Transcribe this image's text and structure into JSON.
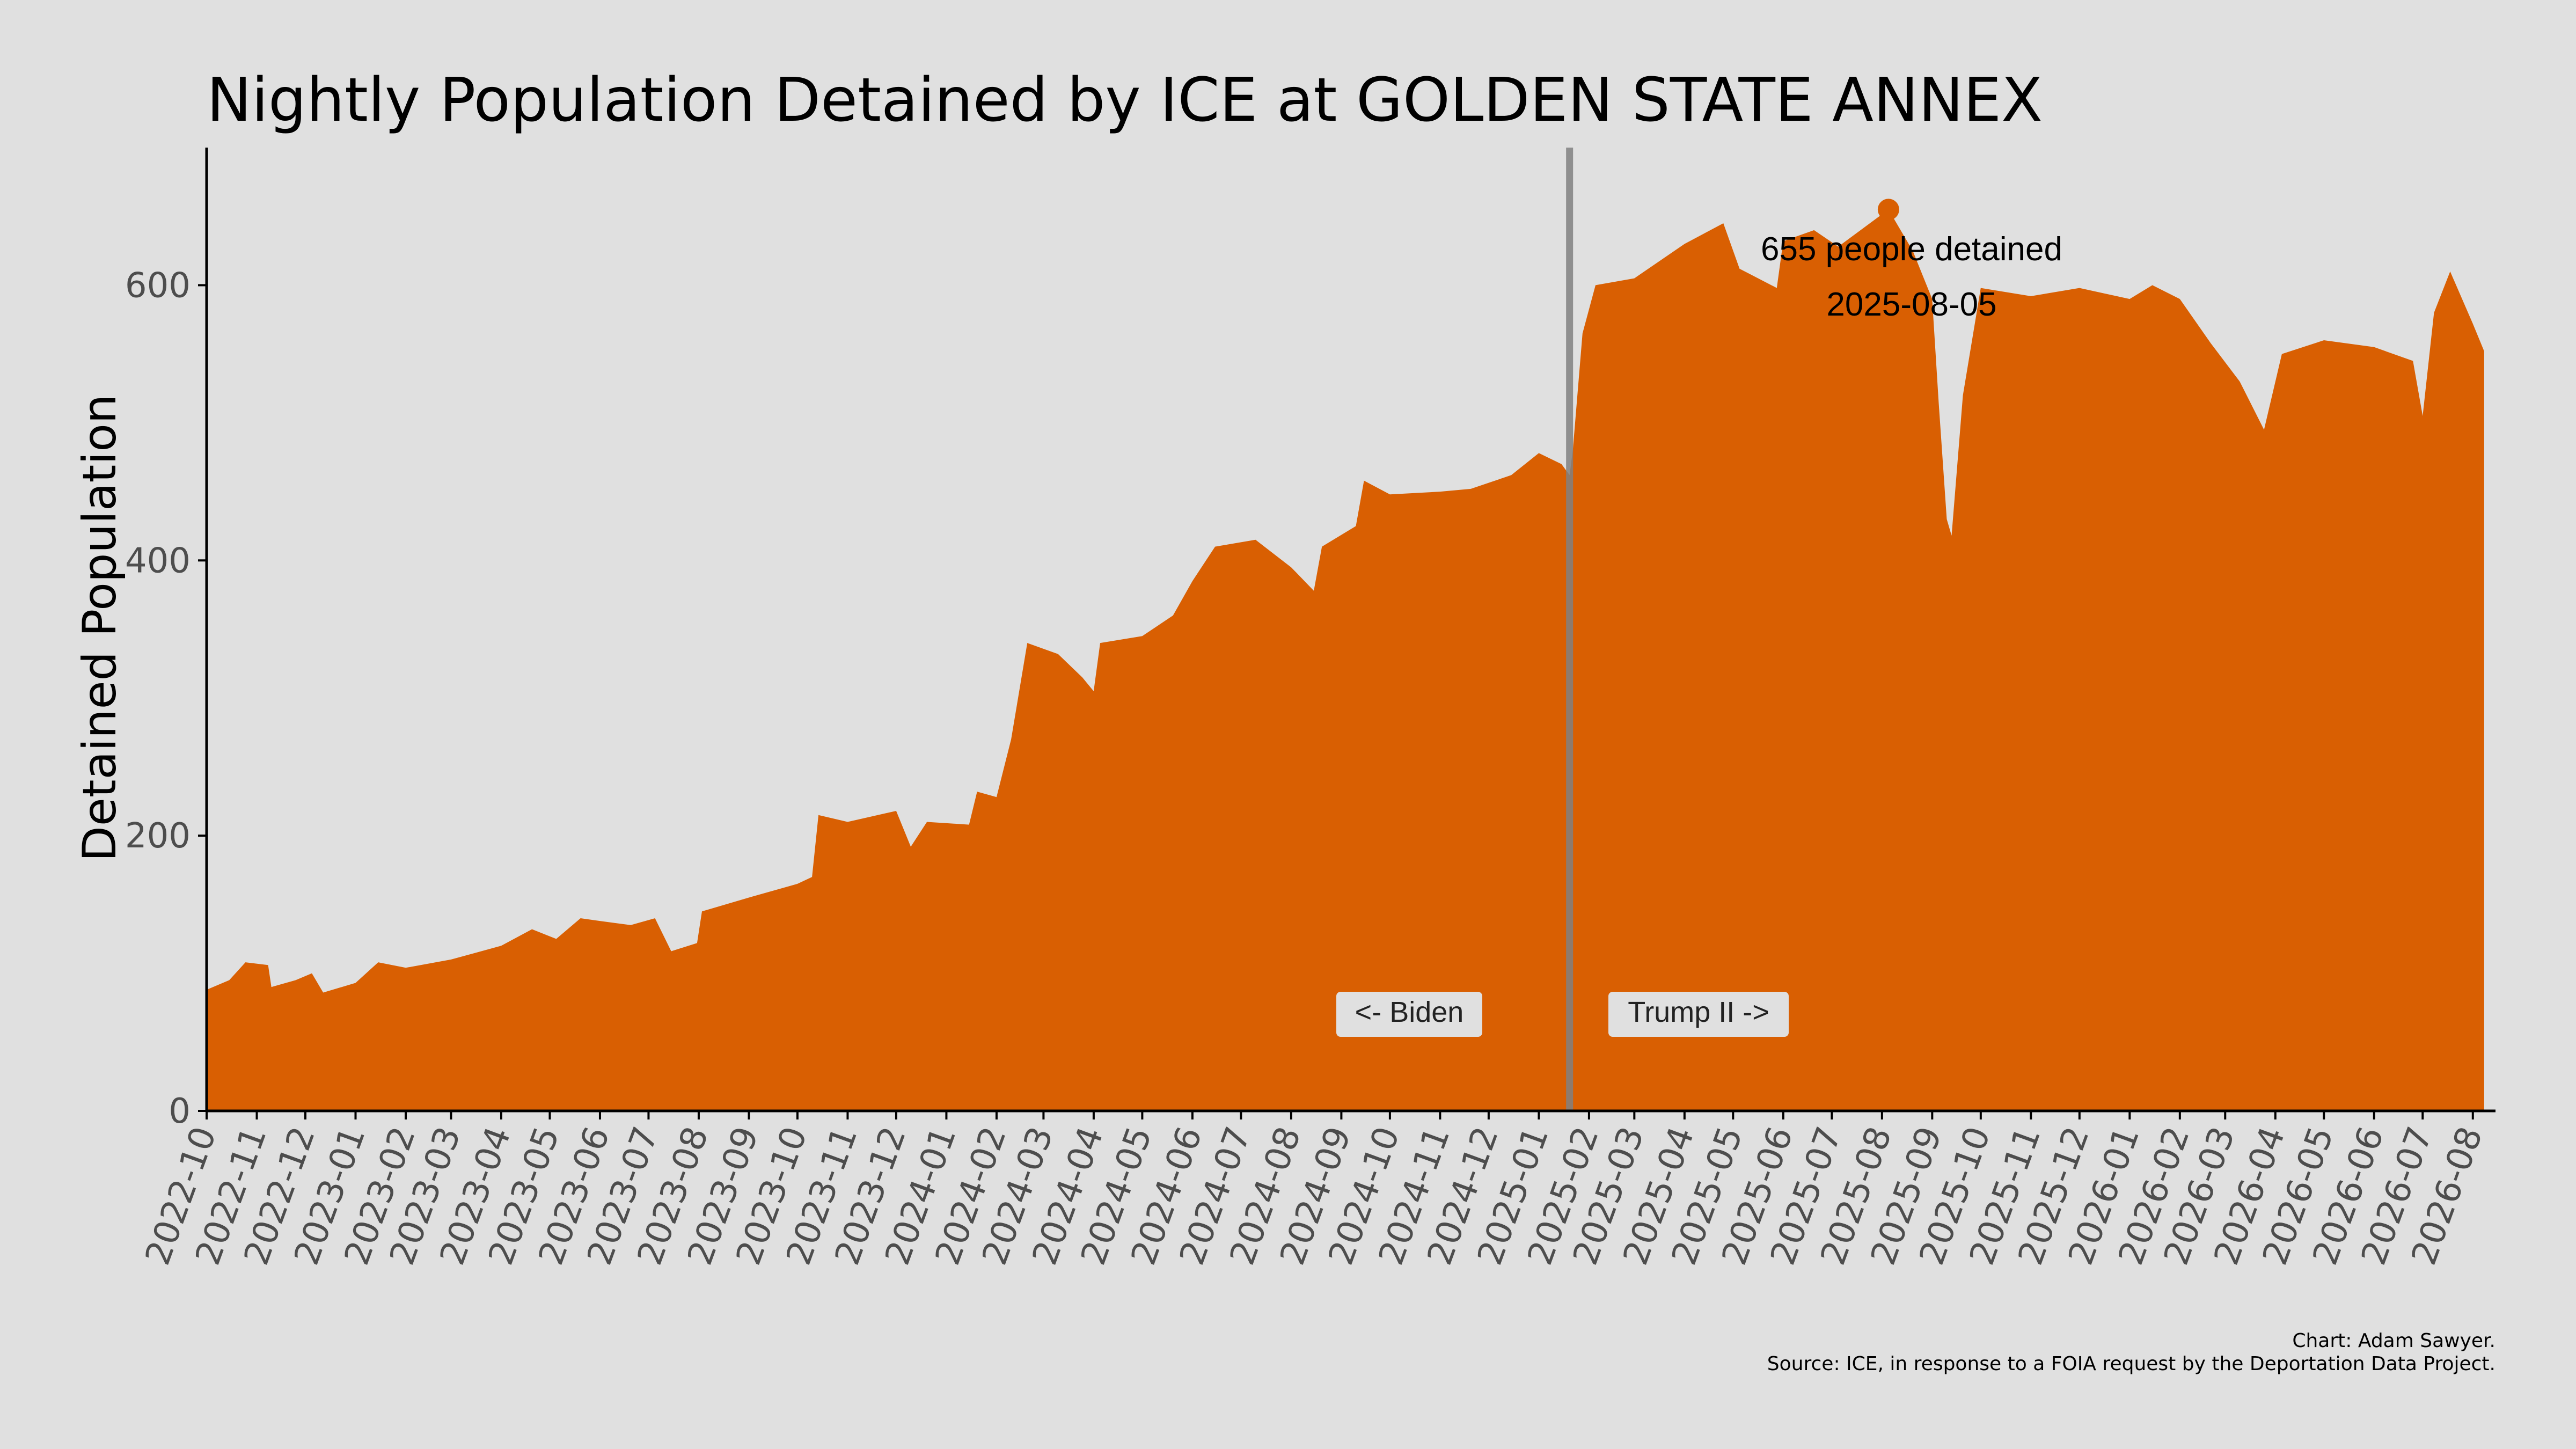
{
  "chart_data": {
    "type": "area",
    "title": "Nightly Population Detained by ICE at GOLDEN STATE ANNEX",
    "xlabel": "",
    "ylabel": "Detained Population",
    "ylim": [
      0,
      700
    ],
    "yticks": [
      0,
      200,
      400,
      600
    ],
    "xlim": [
      "2022-10-01",
      "2026-08-15"
    ],
    "xtick_labels": [
      "2022-10",
      "2022-11",
      "2022-12",
      "2023-01",
      "2023-02",
      "2023-03",
      "2023-04",
      "2023-05",
      "2023-06",
      "2023-07",
      "2023-08",
      "2023-09",
      "2023-10",
      "2023-11",
      "2023-12",
      "2024-01",
      "2024-02",
      "2024-03",
      "2024-04",
      "2024-05",
      "2024-06",
      "2024-07",
      "2024-08",
      "2024-09",
      "2024-10",
      "2024-11",
      "2024-12",
      "2025-01",
      "2025-02",
      "2025-03",
      "2025-04",
      "2025-05",
      "2025-06",
      "2025-07",
      "2025-08",
      "2025-09",
      "2025-10",
      "2025-11",
      "2025-12",
      "2026-01",
      "2026-02",
      "2026-03",
      "2026-04",
      "2026-05",
      "2026-06",
      "2026-07",
      "2026-08"
    ],
    "series": [
      {
        "color": "#d95f02",
        "points": [
          [
            "2022-10-01",
            88
          ],
          [
            "2022-10-15",
            95
          ],
          [
            "2022-10-25",
            108
          ],
          [
            "2022-11-08",
            106
          ],
          [
            "2022-11-10",
            90
          ],
          [
            "2022-11-25",
            95
          ],
          [
            "2022-12-05",
            100
          ],
          [
            "2022-12-12",
            86
          ],
          [
            "2023-01-01",
            93
          ],
          [
            "2023-01-15",
            108
          ],
          [
            "2023-02-01",
            104
          ],
          [
            "2023-03-01",
            110
          ],
          [
            "2023-04-01",
            120
          ],
          [
            "2023-04-20",
            132
          ],
          [
            "2023-05-05",
            125
          ],
          [
            "2023-05-20",
            140
          ],
          [
            "2023-06-01",
            138
          ],
          [
            "2023-06-20",
            135
          ],
          [
            "2023-07-05",
            140
          ],
          [
            "2023-07-15",
            116
          ],
          [
            "2023-07-31",
            122
          ],
          [
            "2023-08-03",
            145
          ],
          [
            "2023-09-01",
            155
          ],
          [
            "2023-10-01",
            165
          ],
          [
            "2023-10-10",
            170
          ],
          [
            "2023-10-14",
            215
          ],
          [
            "2023-11-01",
            210
          ],
          [
            "2023-12-01",
            218
          ],
          [
            "2023-12-10",
            192
          ],
          [
            "2023-12-20",
            210
          ],
          [
            "2024-01-15",
            208
          ],
          [
            "2024-01-20",
            232
          ],
          [
            "2024-02-01",
            228
          ],
          [
            "2024-02-10",
            270
          ],
          [
            "2024-02-20",
            340
          ],
          [
            "2024-03-10",
            332
          ],
          [
            "2024-03-25",
            315
          ],
          [
            "2024-04-01",
            305
          ],
          [
            "2024-04-05",
            340
          ],
          [
            "2024-05-01",
            345
          ],
          [
            "2024-05-20",
            360
          ],
          [
            "2024-06-01",
            385
          ],
          [
            "2024-06-15",
            410
          ],
          [
            "2024-07-10",
            415
          ],
          [
            "2024-08-01",
            395
          ],
          [
            "2024-08-15",
            378
          ],
          [
            "2024-08-20",
            410
          ],
          [
            "2024-09-10",
            425
          ],
          [
            "2024-09-15",
            458
          ],
          [
            "2024-10-01",
            448
          ],
          [
            "2024-11-01",
            450
          ],
          [
            "2024-11-20",
            452
          ],
          [
            "2024-12-15",
            462
          ],
          [
            "2025-01-01",
            478
          ],
          [
            "2025-01-15",
            470
          ],
          [
            "2025-01-20",
            462
          ],
          [
            "2025-01-22",
            480
          ],
          [
            "2025-01-28",
            565
          ],
          [
            "2025-02-05",
            600
          ],
          [
            "2025-03-01",
            605
          ],
          [
            "2025-04-01",
            630
          ],
          [
            "2025-04-25",
            645
          ],
          [
            "2025-05-05",
            612
          ],
          [
            "2025-05-28",
            598
          ],
          [
            "2025-06-01",
            632
          ],
          [
            "2025-06-20",
            640
          ],
          [
            "2025-07-05",
            628
          ],
          [
            "2025-08-05",
            655
          ],
          [
            "2025-08-20",
            625
          ],
          [
            "2025-09-01",
            590
          ],
          [
            "2025-09-05",
            515
          ],
          [
            "2025-09-10",
            430
          ],
          [
            "2025-09-13",
            418
          ],
          [
            "2025-09-20",
            520
          ],
          [
            "2025-10-01",
            598
          ],
          [
            "2025-11-01",
            592
          ],
          [
            "2025-12-01",
            598
          ],
          [
            "2026-01-01",
            590
          ],
          [
            "2026-01-15",
            600
          ],
          [
            "2026-02-01",
            590
          ],
          [
            "2026-02-20",
            558
          ],
          [
            "2026-03-10",
            530
          ],
          [
            "2026-03-25",
            495
          ],
          [
            "2026-04-05",
            550
          ],
          [
            "2026-05-01",
            560
          ],
          [
            "2026-06-01",
            555
          ],
          [
            "2026-06-25",
            545
          ],
          [
            "2026-07-01",
            505
          ],
          [
            "2026-07-08",
            580
          ],
          [
            "2026-07-18",
            610
          ],
          [
            "2026-08-01",
            572
          ],
          [
            "2026-08-08",
            552
          ]
        ]
      }
    ],
    "vline": {
      "date": "2025-01-20",
      "color": "#808080"
    },
    "highlight": {
      "date": "2025-08-05",
      "value": 655
    },
    "annotations": {
      "peak_text": "655 people detained",
      "peak_date": "2025-08-05",
      "left_label": "<- Biden",
      "right_label": "Trump II ->"
    },
    "caption_line1": "Chart: Adam Sawyer.",
    "caption_line2": "Source: ICE, in response to a FOIA request by the Deportation Data Project."
  }
}
